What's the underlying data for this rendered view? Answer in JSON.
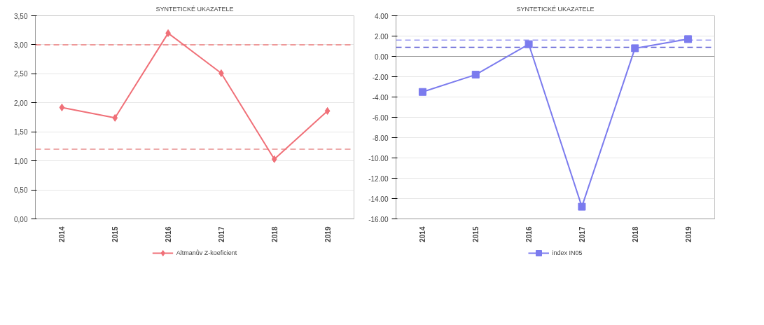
{
  "chart_data": [
    {
      "type": "line",
      "title": "SYNTETICKÉ UKAZATELE",
      "categories": [
        "2014",
        "2015",
        "2016",
        "2017",
        "2018",
        "2019"
      ],
      "series": [
        {
          "name": "Altmanův Z-koeficient",
          "color": "#f07078",
          "values": [
            1.92,
            1.74,
            3.2,
            2.51,
            1.03,
            1.86
          ]
        }
      ],
      "ylim": [
        0,
        3.5
      ],
      "yticks": [
        {
          "value": 0,
          "label": "0,00"
        },
        {
          "value": 0.5,
          "label": "0,50"
        },
        {
          "value": 1,
          "label": "1,00"
        },
        {
          "value": 1.5,
          "label": "1,50"
        },
        {
          "value": 2,
          "label": "2,00"
        },
        {
          "value": 2.5,
          "label": "2,50"
        },
        {
          "value": 3,
          "label": "3,00"
        },
        {
          "value": 3.5,
          "label": "3,50"
        }
      ],
      "ref_lines": [
        {
          "axis": "y",
          "value": 3,
          "color": "#f08080",
          "line_style": "dashed"
        },
        {
          "axis": "y",
          "value": 1.2,
          "color": "#e89090",
          "line_style": "dashed"
        }
      ],
      "grid": "y",
      "legend": "bottom",
      "marker": "diamond"
    },
    {
      "type": "line",
      "title": "SYNTETICKÉ UKAZATELE",
      "categories": [
        "2014",
        "2015",
        "2016",
        "2017",
        "2018",
        "2019"
      ],
      "series": [
        {
          "name": "index IN05",
          "color": "#7b7bee",
          "values": [
            -3.5,
            -1.8,
            1.2,
            -14.8,
            0.8,
            1.7
          ]
        }
      ],
      "ylim": [
        -16,
        4
      ],
      "yticks": [
        {
          "value": -16,
          "label": "-16.00"
        },
        {
          "value": -14,
          "label": "-14.00"
        },
        {
          "value": -12,
          "label": "-12.00"
        },
        {
          "value": -10,
          "label": "-10.00"
        },
        {
          "value": -8,
          "label": "-8.00"
        },
        {
          "value": -6,
          "label": "-6.00"
        },
        {
          "value": -4,
          "label": "-4.00"
        },
        {
          "value": -2,
          "label": "-2.00"
        },
        {
          "value": 0,
          "label": "0.00"
        },
        {
          "value": 2,
          "label": "2.00"
        },
        {
          "value": 4,
          "label": "4.00"
        }
      ],
      "ref_lines": [
        {
          "axis": "y",
          "value": 1.6,
          "color": "#9a9af2",
          "line_style": "dashed"
        },
        {
          "axis": "y",
          "value": 0.9,
          "color": "#5a5ad2",
          "line_style": "dashed"
        }
      ],
      "grid": "y",
      "legend": "bottom",
      "marker": "square"
    }
  ]
}
